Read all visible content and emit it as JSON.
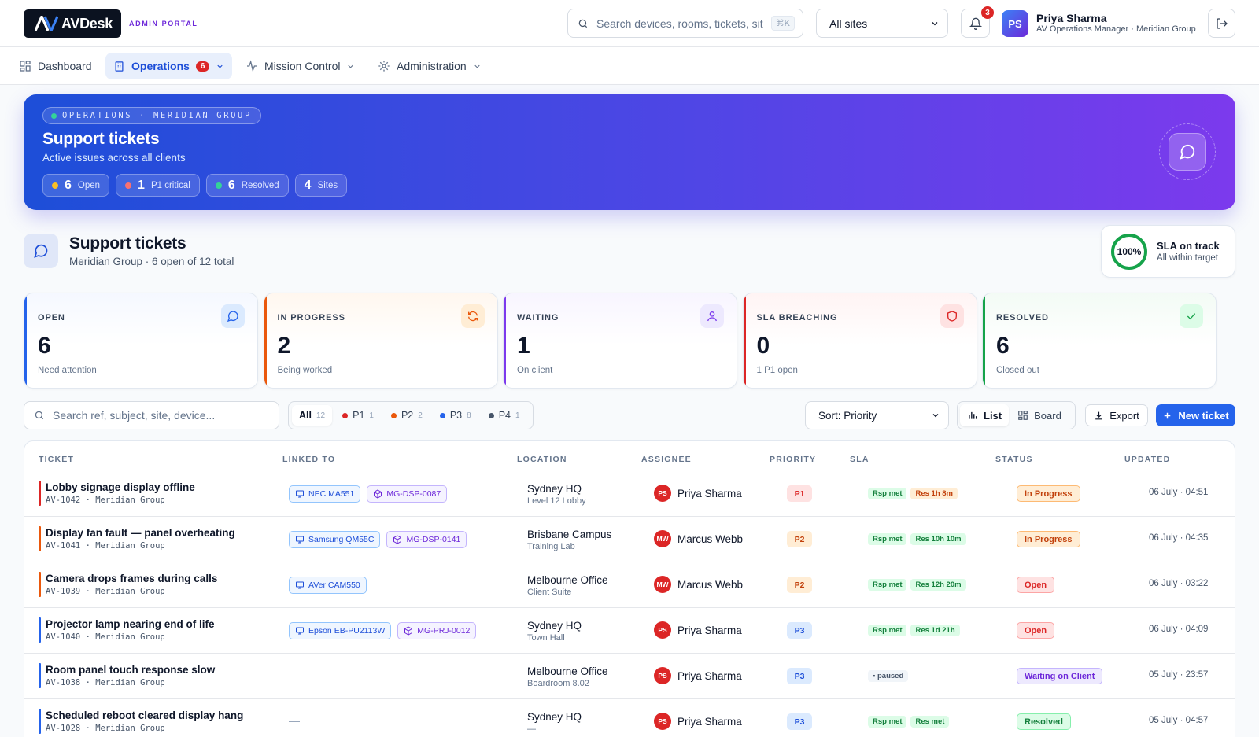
{
  "brand": {
    "name": "AVDesk",
    "portal": "ADMIN PORTAL"
  },
  "header": {
    "search_placeholder": "Search devices, rooms, tickets, sit",
    "search_shortcut": "⌘K",
    "site_select": "All sites",
    "notifications_count": "3",
    "user": {
      "initials": "PS",
      "name": "Priya Sharma",
      "role": "AV Operations Manager · Meridian Group"
    }
  },
  "nav": {
    "dashboard": "Dashboard",
    "operations": "Operations",
    "operations_badge": "6",
    "mission_control": "Mission Control",
    "administration": "Administration"
  },
  "hero": {
    "tag": "OPERATIONS · MERIDIAN GROUP",
    "title": "Support tickets",
    "subtitle": "Active issues across all clients",
    "pills": [
      {
        "value": "6",
        "label": "Open",
        "color": "#fbbf24"
      },
      {
        "value": "1",
        "label": "P1 critical",
        "color": "#f87171"
      },
      {
        "value": "6",
        "label": "Resolved",
        "color": "#34d399"
      },
      {
        "value": "4",
        "label": "Sites",
        "color": ""
      }
    ]
  },
  "section": {
    "title": "Support tickets",
    "subtitle": "Meridian Group · 6 open of 12 total",
    "sla": {
      "percent": "100%",
      "fraction": 1.0,
      "title": "SLA on track",
      "subtitle": "All within target"
    }
  },
  "stats": [
    {
      "label": "OPEN",
      "value": "6",
      "sub": "Need attention",
      "color": "#2563eb",
      "icon": "chat-icon"
    },
    {
      "label": "IN PROGRESS",
      "value": "2",
      "sub": "Being worked",
      "color": "#ea580c",
      "icon": "refresh-icon"
    },
    {
      "label": "WAITING",
      "value": "1",
      "sub": "On client",
      "color": "#7c3aed",
      "icon": "user-icon"
    },
    {
      "label": "SLA BREACHING",
      "value": "0",
      "sub": "1 P1 open",
      "color": "#dc2626",
      "icon": "shield-icon"
    },
    {
      "label": "RESOLVED",
      "value": "6",
      "sub": "Closed out",
      "color": "#16a34a",
      "icon": "check-icon"
    }
  ],
  "toolbar": {
    "search_placeholder": "Search ref, subject, site, device...",
    "filters": [
      {
        "label": "All",
        "count": "12"
      },
      {
        "label": "P1",
        "count": "1",
        "color": "#dc2626"
      },
      {
        "label": "P2",
        "count": "2",
        "color": "#ea580c"
      },
      {
        "label": "P3",
        "count": "8",
        "color": "#2563eb"
      },
      {
        "label": "P4",
        "count": "1",
        "color": "#475569"
      }
    ],
    "sort": "Sort: Priority",
    "view_list": "List",
    "view_board": "Board",
    "export": "Export",
    "new_ticket": "New ticket"
  },
  "table": {
    "columns": [
      "TICKET",
      "LINKED TO",
      "LOCATION",
      "ASSIGNEE",
      "PRIORITY",
      "SLA",
      "STATUS",
      "UPDATED"
    ],
    "rows": [
      {
        "subject": "Lobby signage display offline",
        "ref": "AV-1042 · Meridian Group",
        "devices": [
          {
            "label": "NEC MA551",
            "type": "device"
          },
          {
            "label": "MG-DSP-0087",
            "type": "asset"
          }
        ],
        "site": "Sydney HQ",
        "room": "Level 12 Lobby",
        "assignee_initials": "PS",
        "assignee": "Priya Sharma",
        "priority": "P1",
        "sla": [
          {
            "label": "Rsp met",
            "kind": "ok"
          },
          {
            "label": "Res 1h 8m",
            "kind": "warn"
          }
        ],
        "status": "In Progress",
        "updated": "06 July · 04:51"
      },
      {
        "subject": "Display fan fault — panel overheating",
        "ref": "AV-1041 · Meridian Group",
        "devices": [
          {
            "label": "Samsung QM55C",
            "type": "device"
          },
          {
            "label": "MG-DSP-0141",
            "type": "asset"
          }
        ],
        "site": "Brisbane Campus",
        "room": "Training Lab",
        "assignee_initials": "MW",
        "assignee": "Marcus Webb",
        "priority": "P2",
        "sla": [
          {
            "label": "Rsp met",
            "kind": "ok"
          },
          {
            "label": "Res 10h 10m",
            "kind": "ok"
          }
        ],
        "status": "In Progress",
        "updated": "06 July · 04:35"
      },
      {
        "subject": "Camera drops frames during calls",
        "ref": "AV-1039 · Meridian Group",
        "devices": [
          {
            "label": "AVer CAM550",
            "type": "device"
          }
        ],
        "site": "Melbourne Office",
        "room": "Client Suite",
        "assignee_initials": "MW",
        "assignee": "Marcus Webb",
        "priority": "P2",
        "sla": [
          {
            "label": "Rsp met",
            "kind": "ok"
          },
          {
            "label": "Res 12h 20m",
            "kind": "ok"
          }
        ],
        "status": "Open",
        "updated": "06 July · 03:22"
      },
      {
        "subject": "Projector lamp nearing end of life",
        "ref": "AV-1040 · Meridian Group",
        "devices": [
          {
            "label": "Epson EB-PU2113W",
            "type": "device"
          },
          {
            "label": "MG-PRJ-0012",
            "type": "asset"
          }
        ],
        "site": "Sydney HQ",
        "room": "Town Hall",
        "assignee_initials": "PS",
        "assignee": "Priya Sharma",
        "priority": "P3",
        "sla": [
          {
            "label": "Rsp met",
            "kind": "ok"
          },
          {
            "label": "Res 1d 21h",
            "kind": "ok"
          }
        ],
        "status": "Open",
        "updated": "06 July · 04:09"
      },
      {
        "subject": "Room panel touch response slow",
        "ref": "AV-1038 · Meridian Group",
        "devices": [],
        "site": "Melbourne Office",
        "room": "Boardroom 8.02",
        "assignee_initials": "PS",
        "assignee": "Priya Sharma",
        "priority": "P3",
        "sla": [
          {
            "label": "▪ paused",
            "kind": "pause"
          }
        ],
        "status": "Waiting on Client",
        "updated": "05 July · 23:57"
      },
      {
        "subject": "Scheduled reboot cleared display hang",
        "ref": "AV-1028 · Meridian Group",
        "devices": [],
        "site": "Sydney HQ",
        "room": "—",
        "assignee_initials": "PS",
        "assignee": "Priya Sharma",
        "priority": "P3",
        "sla": [
          {
            "label": "Rsp met",
            "kind": "ok"
          },
          {
            "label": "Res met",
            "kind": "ok"
          }
        ],
        "status": "Resolved",
        "updated": "05 July · 04:57"
      }
    ],
    "empty_link": "—"
  }
}
